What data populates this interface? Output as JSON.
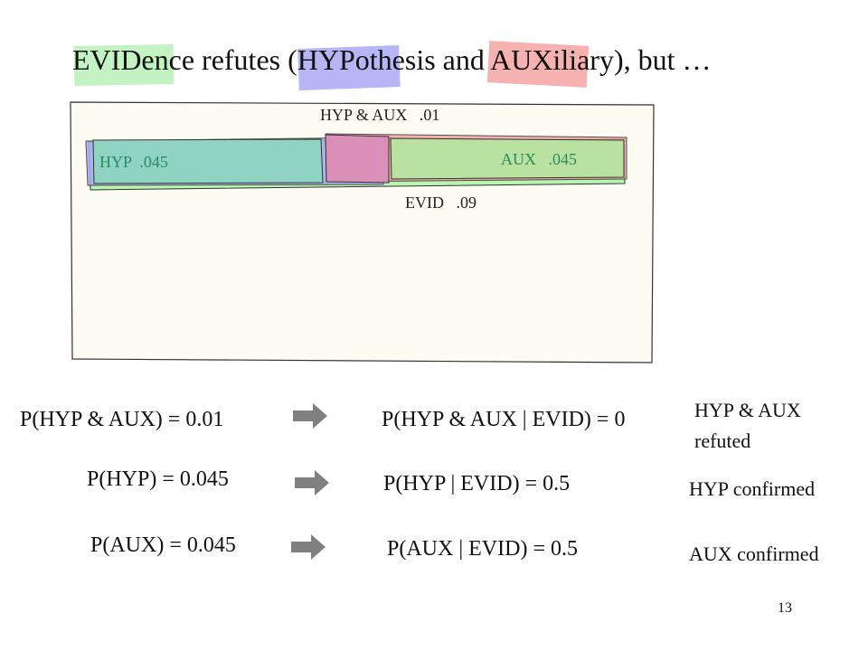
{
  "title": {
    "seg1_hl": "EVIDe",
    "seg1_rest": "nce refutes (",
    "seg2_hl": "HYPoth",
    "seg2_rest": "esis and ",
    "seg3_hl": "AUXilia",
    "seg3_rest": "ry), but …"
  },
  "diagram": {
    "hyp_and_aux_label": "HYP & AUX   .01",
    "hyp_label": "HYP  .045",
    "aux_label": "AUX   .045",
    "evid_label": "EVID   .09"
  },
  "rows": [
    {
      "prior": "P(HYP & AUX) = 0.01",
      "posterior": "P(HYP & AUX | EVID) = 0",
      "verdict_line1": "HYP & AUX",
      "verdict_line2": "refuted"
    },
    {
      "prior": "P(HYP) = 0.045",
      "posterior": "P(HYP | EVID) = 0.5",
      "verdict_line1": "HYP confirmed"
    },
    {
      "prior": "P(AUX) = 0.045",
      "posterior": "P(AUX | EVID) = 0.5",
      "verdict_line1": "AUX confirmed"
    }
  ],
  "page_number": "13",
  "colors": {
    "evid_highlight": "#b8f0b8",
    "hyp_highlight": "#a9a9f5",
    "aux_highlight": "#f5a3a3",
    "box_fill": "#fcfcf2",
    "hyp_fill": "#8fd4c2",
    "aux_fill": "#b9e2a0",
    "overlap_fill": "#d98fb8",
    "evid_fill": "#b7f5b0",
    "arrow": "#808080"
  }
}
